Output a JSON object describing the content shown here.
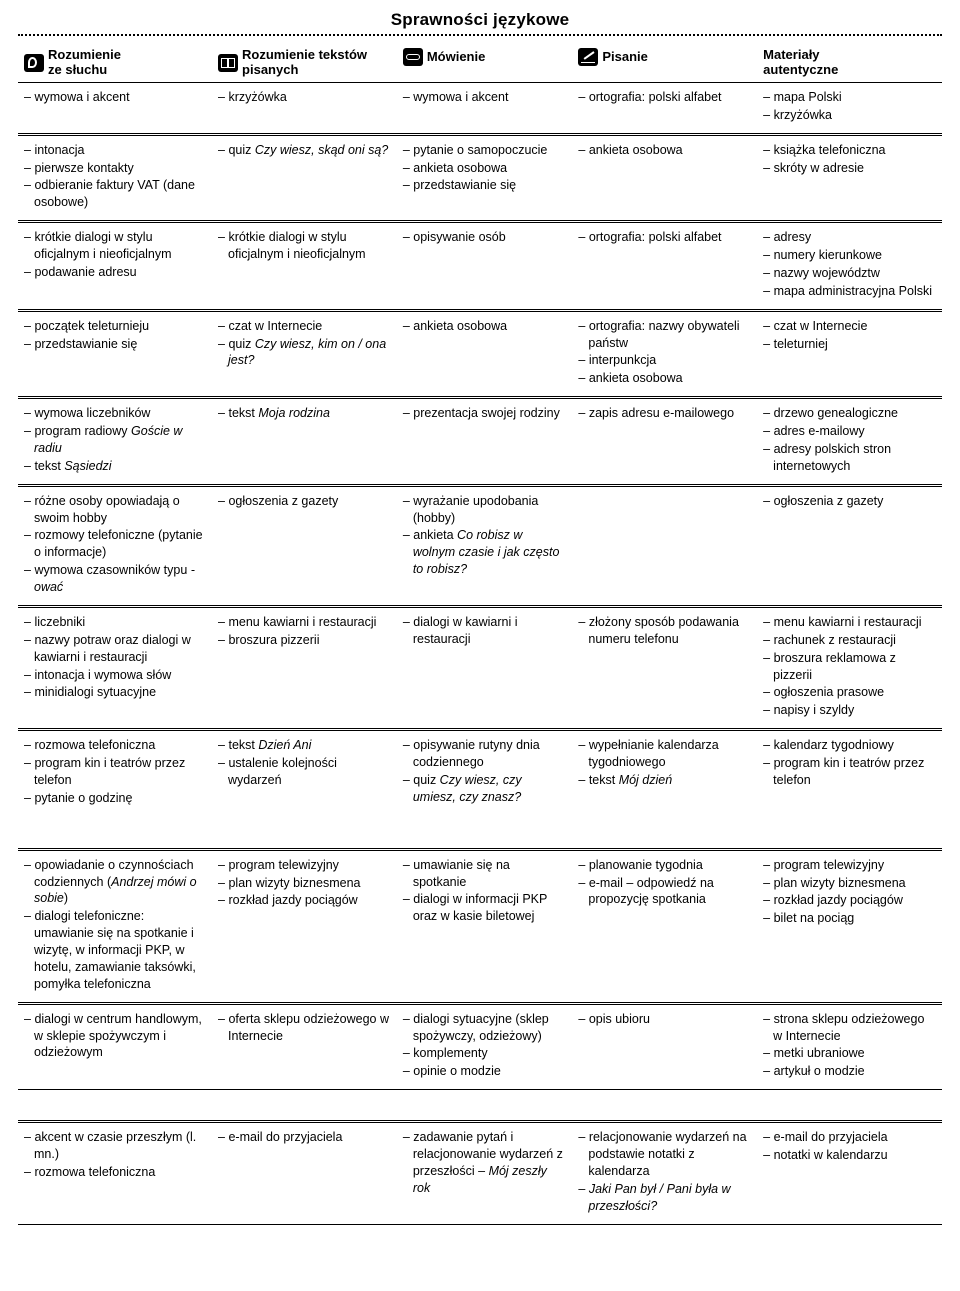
{
  "title": "Sprawności językowe",
  "headers": [
    "Rozumienie<br>ze słuchu",
    "Rozumienie tekstów<br>pisanych",
    "Mówienie",
    "Pisanie",
    "Materiały<br>autentyczne"
  ],
  "icons": [
    "ear",
    "book",
    "mouth",
    "pen",
    null
  ],
  "rows": [
    {
      "cells": [
        [
          "wymowa i akcent"
        ],
        [
          "krzyżówka"
        ],
        [
          "wymowa i akcent"
        ],
        [
          "ortografia: polski alfabet"
        ],
        [
          "mapa Polski",
          "krzyżówka"
        ]
      ]
    },
    {
      "dbl": true,
      "cells": [
        [
          "intonacja",
          "pierwsze kontakty",
          "odbieranie faktury VAT (dane osobowe)"
        ],
        [
          "quiz <em>Czy wiesz, skąd oni są?</em>"
        ],
        [
          "pytanie o samopoczucie",
          "ankieta osobowa",
          "przedstawianie się"
        ],
        [
          "ankieta osobowa"
        ],
        [
          "książka telefoniczna",
          "skróty w adresie"
        ]
      ]
    },
    {
      "dbl": true,
      "cells": [
        [
          "krótkie dialogi w stylu oficjalnym i nieoficjalnym",
          "podawanie adresu"
        ],
        [
          "krótkie dialogi w stylu oficjalnym i nieoficjalnym"
        ],
        [
          "opisywanie osób"
        ],
        [
          "ortografia: polski alfabet"
        ],
        [
          "adresy",
          "numery kierunkowe",
          "nazwy województw",
          "mapa administracyjna Polski"
        ]
      ]
    },
    {
      "dbl": true,
      "cells": [
        [
          "początek teleturnieju",
          "przedstawianie się"
        ],
        [
          "czat w Internecie",
          "quiz <em>Czy wiesz, kim on / ona jest?</em>"
        ],
        [
          "ankieta osobowa"
        ],
        [
          "ortografia: nazwy obywateli państw",
          "interpunkcja",
          "ankieta osobowa"
        ],
        [
          "czat w Internecie",
          "teleturniej"
        ]
      ]
    },
    {
      "dbl": true,
      "cells": [
        [
          "wymowa liczebników",
          "program radiowy <em>Goście w radiu</em>",
          "tekst <em>Sąsiedzi</em>"
        ],
        [
          "tekst <em>Moja rodzina</em>"
        ],
        [
          "prezentacja swojej rodziny"
        ],
        [
          "zapis adresu e-mailowego"
        ],
        [
          "drzewo genealogiczne",
          "adres e-mailowy",
          "adresy polskich stron internetowych"
        ]
      ]
    },
    {
      "dbl": true,
      "cells": [
        [
          "różne osoby opowiadają o swoim hobby",
          "rozmowy telefoniczne (pytanie o informacje)",
          "wymowa czasowników typu <em>-ować</em>"
        ],
        [
          "ogłoszenia z gazety"
        ],
        [
          "wyrażanie upodobania (hobby)",
          "ankieta <em>Co robisz w wolnym czasie i jak często to robisz?</em>"
        ],
        [],
        [
          "ogłoszenia z gazety"
        ]
      ]
    },
    {
      "dbl": true,
      "cells": [
        [
          "liczebniki",
          "nazwy potraw oraz dialogi w kawiarni i restauracji",
          "intonacja i wymowa słów",
          "minidialogi sytuacyjne"
        ],
        [
          "menu kawiarni i restauracji",
          "broszura pizzerii"
        ],
        [
          "dialogi w kawiarni i restauracji"
        ],
        [
          "złożony sposób podawania numeru telefonu"
        ],
        [
          "menu kawiarni i restauracji",
          "rachunek z restauracji",
          "broszura reklamowa z pizzerii",
          "ogłoszenia prasowe",
          "napisy i szyldy"
        ]
      ]
    },
    {
      "dbl": true,
      "cells": [
        [
          "rozmowa telefoniczna",
          "program kin i teatrów przez telefon",
          "pytanie o godzinę"
        ],
        [
          "tekst <em>Dzień Ani</em>",
          "ustalenie kolejności wydarzeń"
        ],
        [
          "opisywanie rutyny dnia codziennego",
          "quiz <em>Czy wiesz, czy umiesz, czy znasz?</em>"
        ],
        [
          "wypełnianie kalendarza tygodniowego",
          "tekst <em>Mój dzień</em>"
        ],
        [
          "kalendarz tygodniowy",
          "program kin i teatrów przez telefon"
        ]
      ],
      "extra_pad": true
    },
    {
      "dbl": true,
      "cells": [
        [
          "opowiadanie o czynnościach codziennych (<em>Andrzej mówi o sobie</em>)",
          "dialogi telefoniczne: umawianie się na spotkanie i wizytę, w informacji PKP, w hotelu, zamawianie taksówki, pomyłka telefoniczna"
        ],
        [
          "program telewizyjny",
          "plan wizyty biznesmena",
          "rozkład jazdy pociągów"
        ],
        [
          "umawianie się na spotkanie",
          "dialogi w informacji PKP oraz w kasie biletowej"
        ],
        [
          "planowanie tygodnia",
          "e-mail – odpowiedź na propozycję spotkania"
        ],
        [
          "program telewizyjny",
          "plan wizyty biznesmena",
          "rozkład jazdy pociągów",
          "bilet na pociąg"
        ]
      ]
    },
    {
      "dbl": true,
      "cells": [
        [
          "dialogi w centrum handlowym, w sklepie spożywczym i odzieżowym"
        ],
        [
          "oferta sklepu odzieżowego w Internecie"
        ],
        [
          "dialogi sytuacyjne (sklep spożywczy, odzieżowy)",
          "komplementy",
          "opinie o modzie"
        ],
        [
          "opis ubioru"
        ],
        [
          "strona sklepu odzieżowego w Internecie",
          "metki ubraniowe",
          "artykuł o modzie"
        ]
      ],
      "gap_after": true
    },
    {
      "dbl": true,
      "cells": [
        [
          "akcent w czasie przeszłym (l. mn.)",
          "rozmowa telefoniczna"
        ],
        [
          "e-mail do przyjaciela"
        ],
        [
          "zadawanie pytań i relacjonowanie wydarzeń z przeszłości – <em>Mój zeszły rok</em>"
        ],
        [
          "relacjonowanie wydarzeń na podstawie notatki z kalendarza",
          "<em>Jaki Pan był / Pani była w przeszłości?</em>"
        ],
        [
          "e-mail do przyjaciela",
          "notatki w kalendarzu"
        ]
      ]
    }
  ]
}
